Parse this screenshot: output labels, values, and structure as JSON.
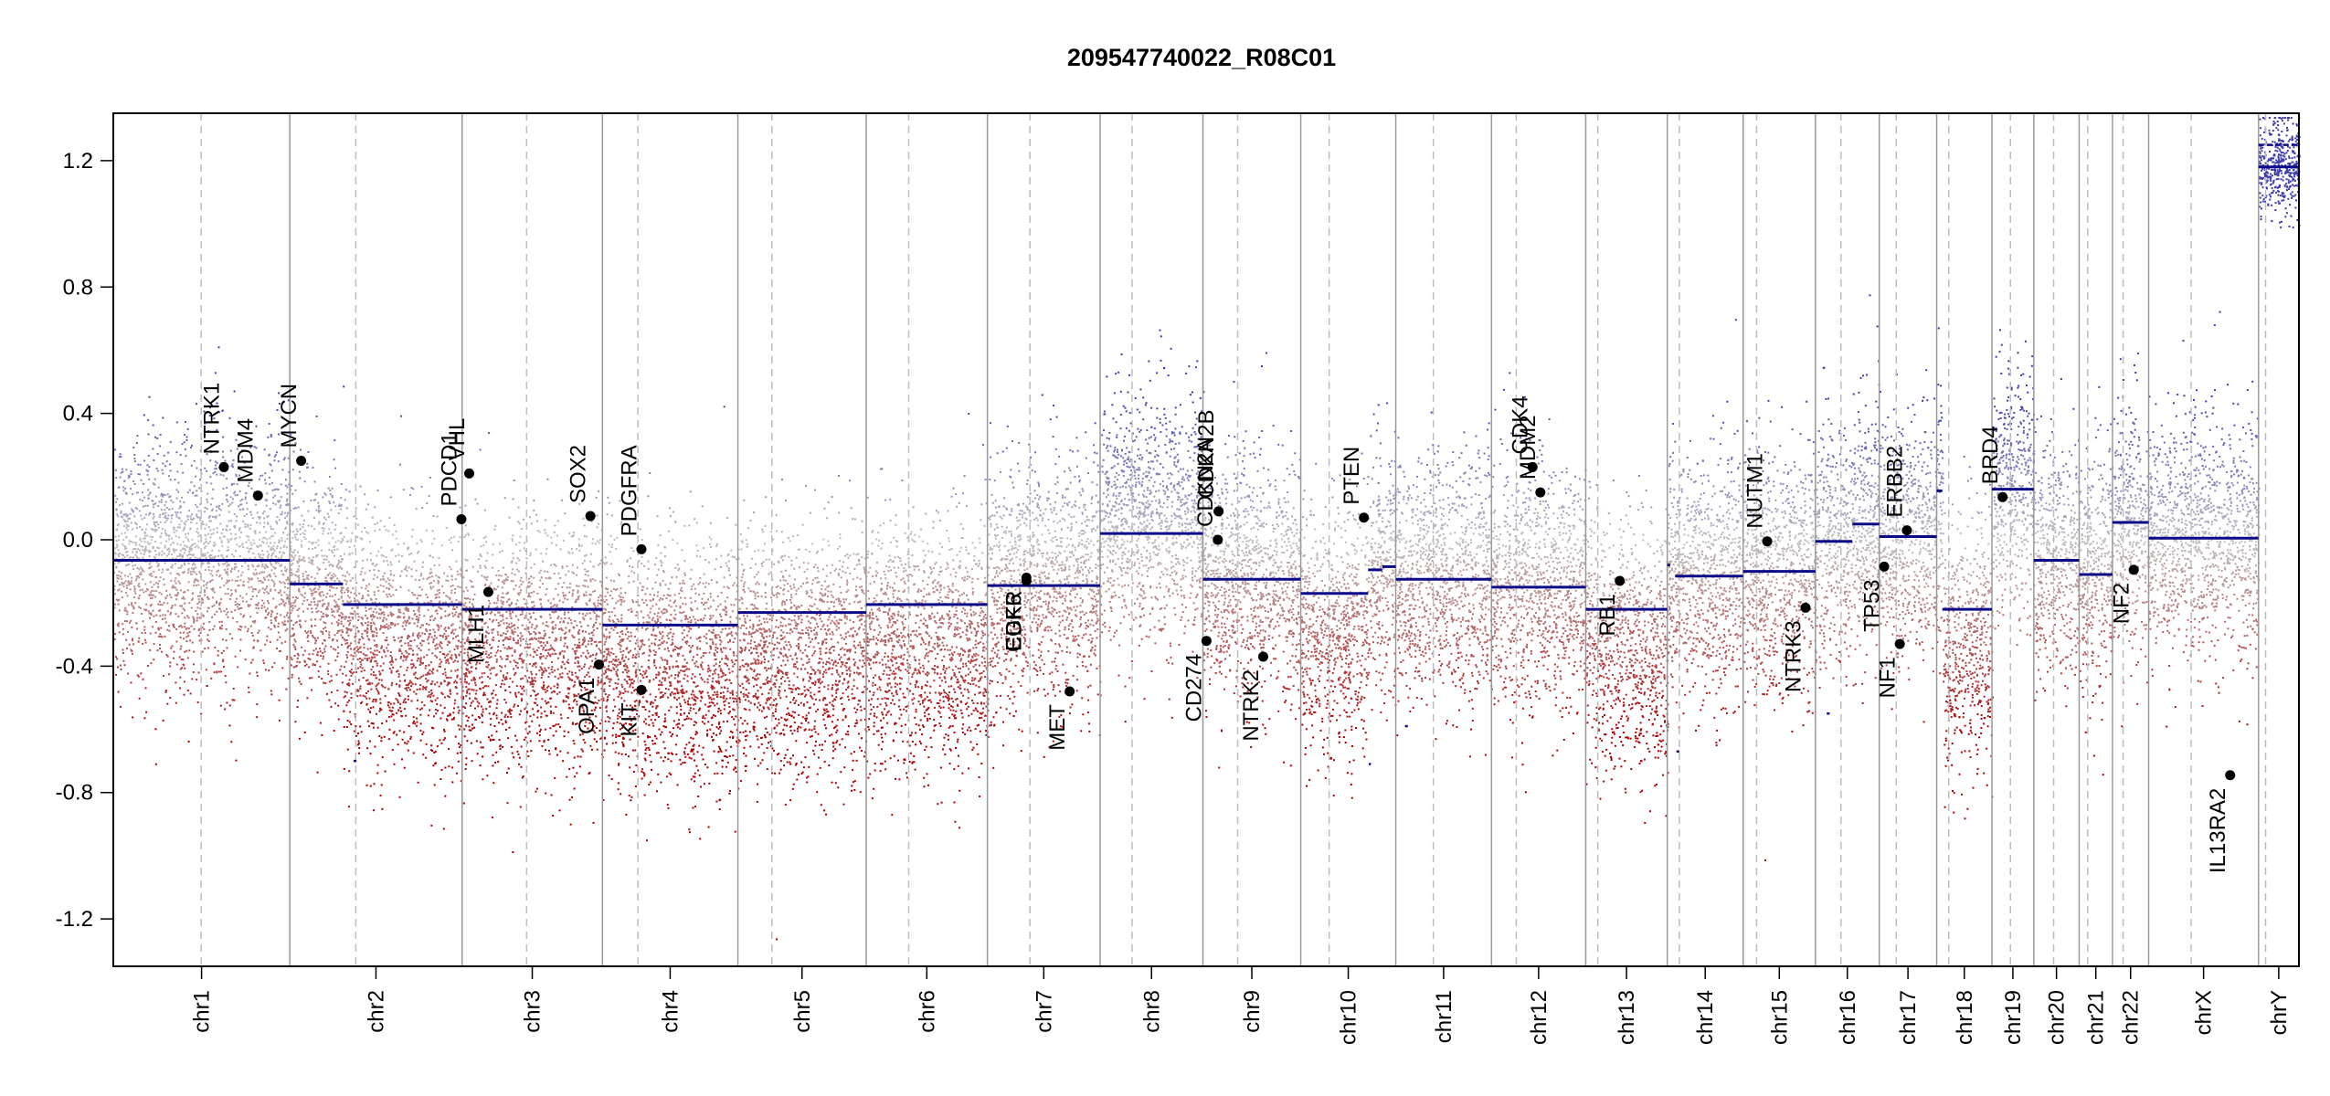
{
  "chart_data": {
    "type": "scatter",
    "title": "209547740022_R08C01",
    "ylim": [
      -1.35,
      1.35
    ],
    "yticks": [
      -1.2,
      -0.8,
      -0.4,
      0.0,
      0.4,
      0.8,
      1.2
    ],
    "ytick_labels": [
      "-1.2",
      "-0.8",
      "-0.4",
      "0.0",
      "0.4",
      "0.8",
      "1.2"
    ],
    "grid": false,
    "colors": {
      "gain": "#1a1aa0",
      "neutral": "#b4b4b4",
      "loss": "#b40000",
      "segment": "#0b0b8a",
      "chrom_border": "#999999",
      "centromere": "#bdbdbd",
      "gene_point": "#000000"
    },
    "chromosomes": [
      {
        "name": "chr1",
        "size": 249,
        "cen": 124
      },
      {
        "name": "chr2",
        "size": 243,
        "cen": 93
      },
      {
        "name": "chr3",
        "size": 198,
        "cen": 91
      },
      {
        "name": "chr4",
        "size": 191,
        "cen": 50
      },
      {
        "name": "chr5",
        "size": 181,
        "cen": 48
      },
      {
        "name": "chr6",
        "size": 171,
        "cen": 60
      },
      {
        "name": "chr7",
        "size": 159,
        "cen": 60
      },
      {
        "name": "chr8",
        "size": 145,
        "cen": 45
      },
      {
        "name": "chr9",
        "size": 138,
        "cen": 49
      },
      {
        "name": "chr10",
        "size": 134,
        "cen": 40
      },
      {
        "name": "chr11",
        "size": 135,
        "cen": 53
      },
      {
        "name": "chr12",
        "size": 133,
        "cen": 35
      },
      {
        "name": "chr13",
        "size": 115,
        "cen": 17
      },
      {
        "name": "chr14",
        "size": 107,
        "cen": 17
      },
      {
        "name": "chr15",
        "size": 102,
        "cen": 19
      },
      {
        "name": "chr16",
        "size": 90,
        "cen": 36
      },
      {
        "name": "chr17",
        "size": 81,
        "cen": 24
      },
      {
        "name": "chr18",
        "size": 78,
        "cen": 17
      },
      {
        "name": "chr19",
        "size": 59,
        "cen": 26
      },
      {
        "name": "chr20",
        "size": 64,
        "cen": 28
      },
      {
        "name": "chr21",
        "size": 47,
        "cen": 12
      },
      {
        "name": "chr22",
        "size": 51,
        "cen": 15
      },
      {
        "name": "chrX",
        "size": 155,
        "cen": 60
      },
      {
        "name": "chrY",
        "size": 57,
        "cen": 10
      }
    ],
    "segments": [
      {
        "chr": "chr1",
        "start": 0,
        "end": 249,
        "value": -0.065
      },
      {
        "chr": "chr2",
        "start": 0,
        "end": 75,
        "value": -0.14
      },
      {
        "chr": "chr2",
        "start": 75,
        "end": 243,
        "value": -0.205
      },
      {
        "chr": "chr3",
        "start": 0,
        "end": 198,
        "value": -0.22
      },
      {
        "chr": "chr4",
        "start": 0,
        "end": 191,
        "value": -0.27
      },
      {
        "chr": "chr5",
        "start": 0,
        "end": 181,
        "value": -0.23
      },
      {
        "chr": "chr6",
        "start": 0,
        "end": 171,
        "value": -0.205
      },
      {
        "chr": "chr7",
        "start": 0,
        "end": 159,
        "value": -0.145
      },
      {
        "chr": "chr8",
        "start": 0,
        "end": 145,
        "value": 0.02
      },
      {
        "chr": "chr9",
        "start": 0,
        "end": 138,
        "value": -0.125
      },
      {
        "chr": "chr10",
        "start": 0,
        "end": 95,
        "value": -0.17
      },
      {
        "chr": "chr10",
        "start": 95,
        "end": 115,
        "value": -0.095
      },
      {
        "chr": "chr10",
        "start": 115,
        "end": 134,
        "value": -0.085
      },
      {
        "chr": "chr11",
        "start": 0,
        "end": 135,
        "value": -0.125
      },
      {
        "chr": "chr12",
        "start": 0,
        "end": 133,
        "value": -0.15
      },
      {
        "chr": "chr13",
        "start": 0,
        "end": 115,
        "value": -0.22
      },
      {
        "chr": "chr14",
        "start": 0,
        "end": 4,
        "value": -0.08
      },
      {
        "chr": "chr14",
        "start": 11,
        "end": 107,
        "value": -0.115
      },
      {
        "chr": "chr15",
        "start": 0,
        "end": 102,
        "value": -0.1
      },
      {
        "chr": "chr16",
        "start": 0,
        "end": 52,
        "value": -0.005
      },
      {
        "chr": "chr16",
        "start": 52,
        "end": 90,
        "value": 0.05
      },
      {
        "chr": "chr17",
        "start": 0,
        "end": 81,
        "value": 0.01
      },
      {
        "chr": "chr18",
        "start": 0,
        "end": 8,
        "value": 0.155
      },
      {
        "chr": "chr18",
        "start": 8,
        "end": 78,
        "value": -0.22
      },
      {
        "chr": "chr19",
        "start": 0,
        "end": 59,
        "value": 0.16
      },
      {
        "chr": "chr20",
        "start": 0,
        "end": 64,
        "value": -0.065
      },
      {
        "chr": "chr21",
        "start": 0,
        "end": 47,
        "value": -0.11
      },
      {
        "chr": "chr22",
        "start": 0,
        "end": 51,
        "value": 0.055
      },
      {
        "chr": "chrX",
        "start": 0,
        "end": 155,
        "value": 0.005
      },
      {
        "chr": "chrY",
        "start": 0,
        "end": 57,
        "value": 1.18
      }
    ],
    "short_segments": [
      {
        "chr": "chr2",
        "start": 90,
        "end": 94,
        "value": -0.7
      },
      {
        "chr": "chr10",
        "start": 96,
        "end": 99,
        "value": -0.71
      },
      {
        "chr": "chr11",
        "start": 13,
        "end": 17,
        "value": -0.59
      },
      {
        "chr": "chr14",
        "start": 13,
        "end": 17,
        "value": -0.67
      },
      {
        "chr": "chr16",
        "start": 16,
        "end": 20,
        "value": -0.55
      },
      {
        "chr": "chrY",
        "start": 0,
        "end": 57,
        "value": 1.25
      }
    ],
    "genes": [
      {
        "name": "NTRK1",
        "chr": "chr1",
        "pos": 156,
        "value": 0.23
      },
      {
        "name": "MDM4",
        "chr": "chr1",
        "pos": 204,
        "value": 0.14
      },
      {
        "name": "MYCN",
        "chr": "chr2",
        "pos": 16,
        "value": 0.25
      },
      {
        "name": "PDCD1",
        "chr": "chr2",
        "pos": 242,
        "value": 0.065
      },
      {
        "name": "VHL",
        "chr": "chr3",
        "pos": 10,
        "value": 0.21
      },
      {
        "name": "MLH1",
        "chr": "chr3",
        "pos": 37,
        "value": -0.165
      },
      {
        "name": "SOX2",
        "chr": "chr3",
        "pos": 181,
        "value": 0.075
      },
      {
        "name": "OPA1",
        "chr": "chr3",
        "pos": 193,
        "value": -0.395
      },
      {
        "name": "PDGFRA",
        "chr": "chr4",
        "pos": 55,
        "value": -0.03
      },
      {
        "name": "KIT",
        "chr": "chr4",
        "pos": 55,
        "value": -0.475
      },
      {
        "name": "EGFR",
        "chr": "chr7",
        "pos": 55,
        "value": -0.12
      },
      {
        "name": "CDK6",
        "chr": "chr7",
        "pos": 55,
        "value": -0.13
      },
      {
        "name": "MET",
        "chr": "chr7",
        "pos": 116,
        "value": -0.48
      },
      {
        "name": "CD274",
        "chr": "chr9",
        "pos": 5,
        "value": -0.32
      },
      {
        "name": "CDKN2A",
        "chr": "chr9",
        "pos": 21,
        "value": 0.0
      },
      {
        "name": "CDKN2B",
        "chr": "chr9",
        "pos": 22,
        "value": 0.09
      },
      {
        "name": "NTRK2",
        "chr": "chr9",
        "pos": 85,
        "value": -0.37
      },
      {
        "name": "PTEN",
        "chr": "chr10",
        "pos": 89,
        "value": 0.07
      },
      {
        "name": "CDK4",
        "chr": "chr12",
        "pos": 58,
        "value": 0.23
      },
      {
        "name": "MDM2",
        "chr": "chr12",
        "pos": 69,
        "value": 0.15
      },
      {
        "name": "RB1",
        "chr": "chr13",
        "pos": 48,
        "value": -0.13
      },
      {
        "name": "NUTM1",
        "chr": "chr15",
        "pos": 34,
        "value": -0.005
      },
      {
        "name": "NTRK3",
        "chr": "chr15",
        "pos": 88,
        "value": -0.215
      },
      {
        "name": "TP53",
        "chr": "chr17",
        "pos": 7,
        "value": -0.085
      },
      {
        "name": "NF1",
        "chr": "chr17",
        "pos": 29,
        "value": -0.33
      },
      {
        "name": "ERBB2",
        "chr": "chr17",
        "pos": 39,
        "value": 0.03
      },
      {
        "name": "BRD4",
        "chr": "chr19",
        "pos": 15,
        "value": 0.135
      },
      {
        "name": "NF2",
        "chr": "chr22",
        "pos": 30,
        "value": -0.095
      },
      {
        "name": "IL13RA2",
        "chr": "chrX",
        "pos": 115,
        "value": -0.745
      }
    ]
  }
}
